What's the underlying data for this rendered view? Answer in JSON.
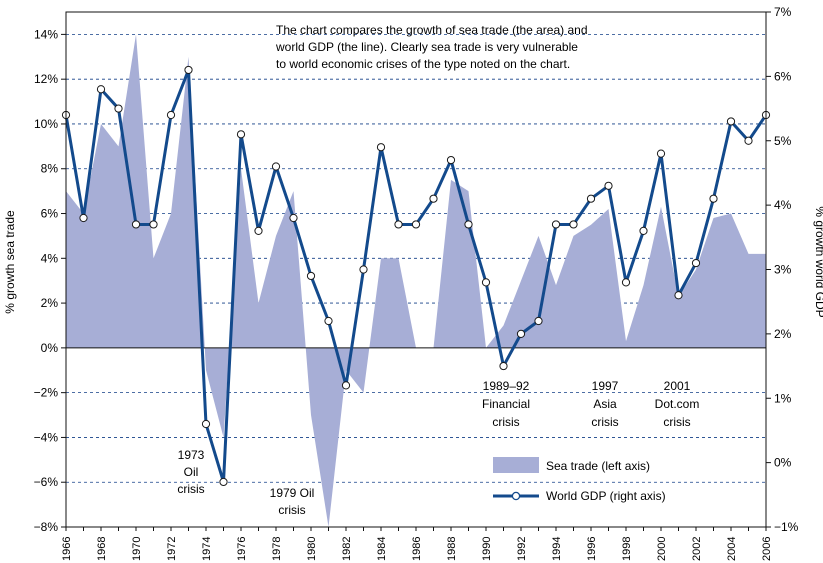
{
  "chart_data": {
    "type": "area+line",
    "title": "",
    "ylabel_left": "% growth sea trade",
    "ylabel_right": "% growth world GDP",
    "left_axis": {
      "min": -8,
      "max": 15,
      "ticks": [
        14,
        12,
        10,
        8,
        6,
        4,
        2,
        0,
        -2,
        -4,
        -6,
        -8
      ],
      "tick_labels": [
        "14%",
        "12%",
        "10%",
        "8%",
        "6%",
        "4%",
        "2%",
        "0%",
        "−2%",
        "−4%",
        "−6%",
        "−8%"
      ]
    },
    "right_axis": {
      "min": -1,
      "max": 7,
      "ticks": [
        7,
        6,
        5,
        4,
        3,
        2,
        1,
        0,
        -1
      ],
      "tick_labels": [
        "7%",
        "6%",
        "5%",
        "4%",
        "3%",
        "2%",
        "1%",
        "0%",
        "−1%"
      ]
    },
    "x_tick_labels": [
      "1966",
      "1968",
      "1970",
      "1972",
      "1974",
      "1976",
      "1978",
      "1980",
      "1982",
      "1984",
      "1986",
      "1988",
      "1990",
      "1992",
      "1994",
      "1996",
      "1998",
      "2000",
      "2002",
      "2004",
      "2006"
    ],
    "sea_trade": {
      "name": "Sea trade (left axis)",
      "color": "#a7aed6",
      "x": [
        1966,
        1967,
        1968,
        1969,
        1970,
        1971,
        1972,
        1973,
        1974,
        1975,
        1976,
        1977,
        1978,
        1979,
        1980,
        1981,
        1982,
        1983,
        1984,
        1985,
        1986,
        1987,
        1988,
        1989,
        1990,
        1991,
        1992,
        1993,
        1994,
        1995,
        1996,
        1997,
        1998,
        1999,
        2000,
        2001,
        2002,
        2003,
        2004,
        2005,
        2006
      ],
      "values": [
        7.0,
        6.0,
        10.0,
        9.0,
        14.0,
        4.0,
        6.0,
        13.0,
        -1.0,
        -4.0,
        8.0,
        2.0,
        5.0,
        7.0,
        -3.0,
        -8.0,
        -1.0,
        -2.0,
        4.0,
        4.0,
        0.0,
        0.0,
        7.5,
        7.0,
        0.0,
        1.0,
        3.0,
        5.0,
        2.8,
        5.0,
        5.5,
        6.2,
        0.3,
        2.8,
        6.3,
        2.3,
        3.5,
        5.8,
        6.0,
        4.2,
        4.2
      ]
    },
    "world_gdp": {
      "name": "World GDP (right axis)",
      "color": "#134a8c",
      "x": [
        1966,
        1967,
        1968,
        1969,
        1970,
        1971,
        1972,
        1973,
        1974,
        1975,
        1976,
        1977,
        1978,
        1979,
        1980,
        1981,
        1982,
        1983,
        1984,
        1985,
        1986,
        1987,
        1988,
        1989,
        1990,
        1991,
        1992,
        1993,
        1994,
        1995,
        1996,
        1997,
        1998,
        1999,
        2000,
        2001,
        2002,
        2003,
        2004,
        2005,
        2006
      ],
      "values": [
        5.4,
        3.8,
        5.8,
        5.5,
        3.7,
        3.7,
        5.4,
        6.1,
        0.6,
        -0.3,
        5.1,
        3.6,
        4.6,
        3.8,
        2.9,
        2.2,
        1.2,
        3.0,
        4.9,
        3.7,
        3.7,
        4.1,
        4.7,
        3.7,
        2.8,
        1.5,
        2.0,
        2.2,
        3.7,
        3.7,
        4.1,
        4.3,
        2.8,
        3.6,
        4.8,
        2.6,
        3.1,
        4.1,
        5.3,
        5.0,
        5.4
      ]
    },
    "note": [
      "The chart compares the growth of sea trade (the area) and",
      "world GDP (the line). Clearly sea trade is very vulnerable",
      "to world economic crises of the type noted on the chart."
    ],
    "annotations": [
      {
        "id": "1973",
        "lines": [
          "1973",
          "Oil",
          "crisis"
        ]
      },
      {
        "id": "1979",
        "lines": [
          "1979 Oil",
          "crisis"
        ]
      },
      {
        "id": "1989",
        "lines": [
          "1989–92",
          "Financial",
          "crisis"
        ]
      },
      {
        "id": "1997",
        "lines": [
          "1997",
          "Asia",
          "crisis"
        ]
      },
      {
        "id": "2001",
        "lines": [
          "2001",
          "Dot.com",
          "crisis"
        ]
      }
    ],
    "legend": [
      {
        "label": "Sea trade (left axis)",
        "kind": "area"
      },
      {
        "label": "World GDP (right axis)",
        "kind": "line"
      }
    ],
    "grid": "dashed horizontal"
  }
}
